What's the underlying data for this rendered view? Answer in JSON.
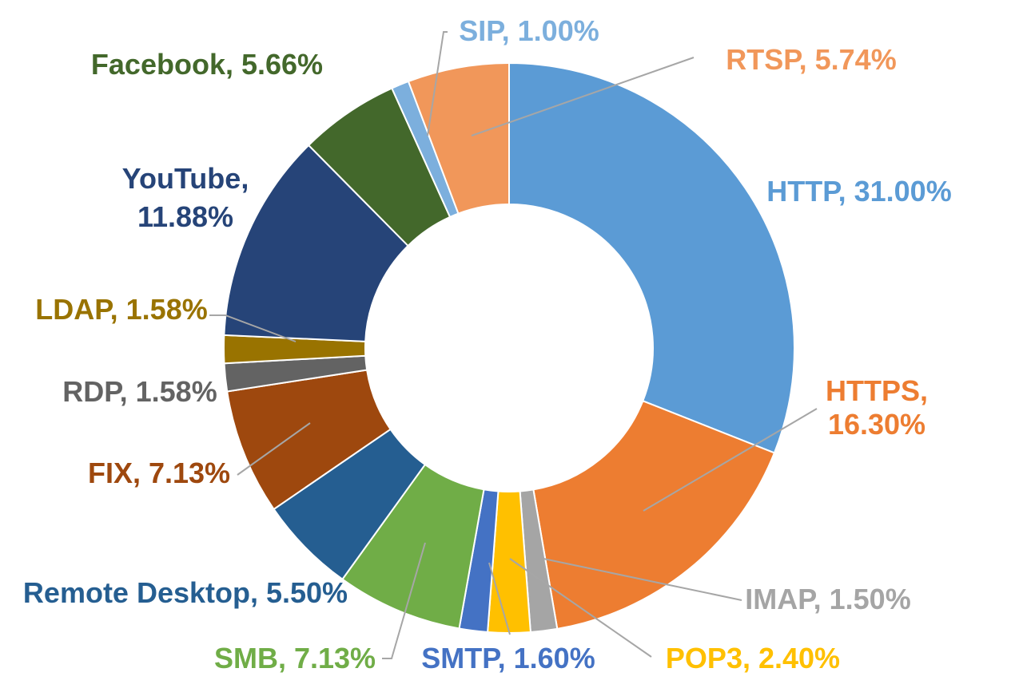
{
  "chart_data": {
    "type": "pie",
    "donut": true,
    "title": "",
    "series": [
      {
        "name": "HTTP",
        "value": 31.0,
        "label": "HTTP, 31.00%",
        "color": "#5b9bd5"
      },
      {
        "name": "HTTPS",
        "value": 16.3,
        "label": "HTTPS, 16.30%",
        "label_lines": [
          "HTTPS,",
          "16.30%"
        ],
        "color": "#ed7d31"
      },
      {
        "name": "IMAP",
        "value": 1.5,
        "label": "IMAP, 1.50%",
        "color": "#a5a5a5"
      },
      {
        "name": "POP3",
        "value": 2.4,
        "label": "POP3, 2.40%",
        "color": "#ffc000"
      },
      {
        "name": "SMTP",
        "value": 1.6,
        "label": "SMTP, 1.60%",
        "color": "#4472c4"
      },
      {
        "name": "SMB",
        "value": 7.13,
        "label": "SMB, 7.13%",
        "color": "#70ad47"
      },
      {
        "name": "Remote Desktop",
        "value": 5.5,
        "label": "Remote Desktop, 5.50%",
        "color": "#255e91"
      },
      {
        "name": "FIX",
        "value": 7.13,
        "label": "FIX, 7.13%",
        "color": "#9e480e"
      },
      {
        "name": "RDP",
        "value": 1.58,
        "label": "RDP, 1.58%",
        "color": "#636363"
      },
      {
        "name": "LDAP",
        "value": 1.58,
        "label": "LDAP, 1.58%",
        "color": "#997300"
      },
      {
        "name": "YouTube",
        "value": 11.88,
        "label": "YouTube, 11.88%",
        "label_lines": [
          "YouTube,",
          "11.88%"
        ],
        "color": "#264478"
      },
      {
        "name": "Facebook",
        "value": 5.66,
        "label": "Facebook, 5.66%",
        "color": "#43682b"
      },
      {
        "name": "SIP",
        "value": 1.0,
        "label": "SIP, 1.00%",
        "color": "#7cafdd"
      },
      {
        "name": "RTSP",
        "value": 5.74,
        "label": "RTSP, 5.74%",
        "color": "#f1975a"
      }
    ]
  }
}
